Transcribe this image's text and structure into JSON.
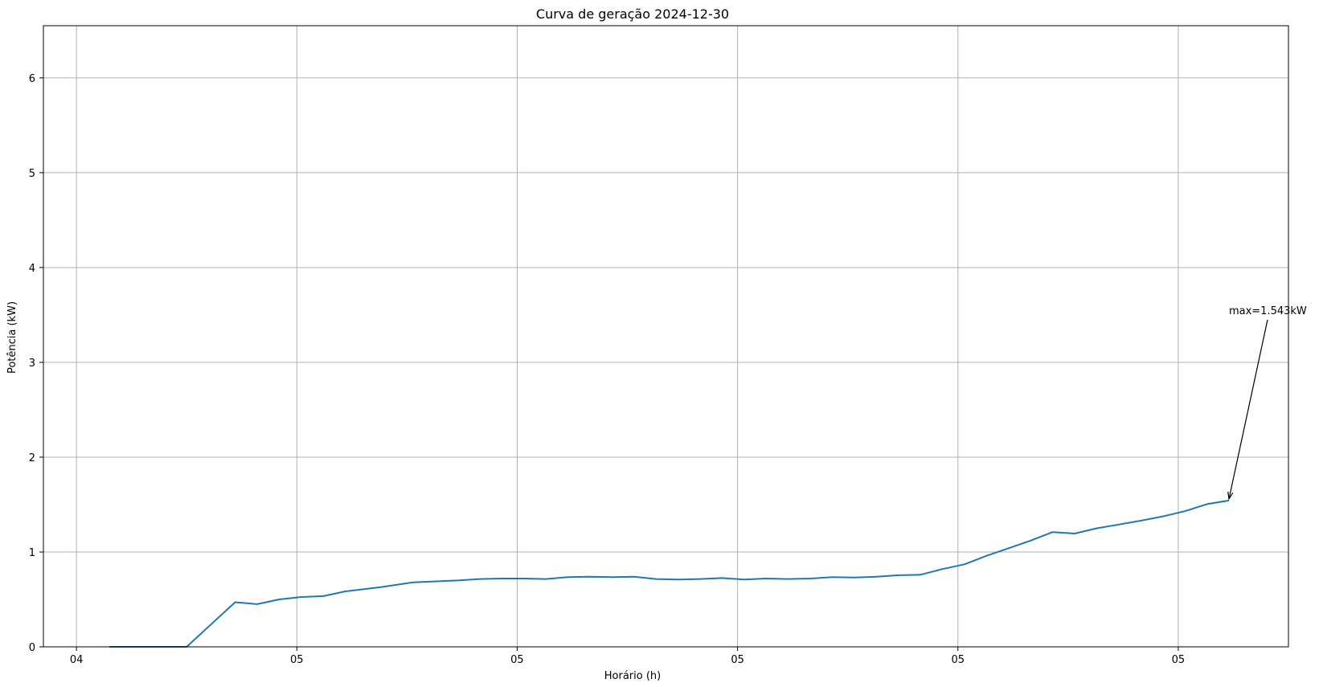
{
  "chart_data": {
    "type": "line",
    "title": "Curva de geração 2024-12-30",
    "xlabel": "Horário (h)",
    "ylabel": "Potência (kW)",
    "xlim": [
      -0.15,
      5.5
    ],
    "ylim": [
      0,
      6.55
    ],
    "x_ticks": [
      {
        "pos": 0,
        "label": "04"
      },
      {
        "pos": 1,
        "label": "05"
      },
      {
        "pos": 2,
        "label": "05"
      },
      {
        "pos": 3,
        "label": "05"
      },
      {
        "pos": 4,
        "label": "05"
      },
      {
        "pos": 5,
        "label": "05"
      }
    ],
    "y_ticks": [
      0,
      1,
      2,
      3,
      4,
      5,
      6
    ],
    "grid": true,
    "series": [
      {
        "color": "#1f77b4",
        "x": [
          0.15,
          0.25,
          0.35,
          0.5,
          0.72,
          0.82,
          0.92,
          1.02,
          1.12,
          1.22,
          1.38,
          1.53,
          1.73,
          1.83,
          1.93,
          2.03,
          2.13,
          2.23,
          2.33,
          2.43,
          2.53,
          2.63,
          2.73,
          2.83,
          2.93,
          3.03,
          3.13,
          3.23,
          3.33,
          3.43,
          3.53,
          3.63,
          3.73,
          3.83,
          3.93,
          4.03,
          4.13,
          4.23,
          4.33,
          4.43,
          4.53,
          4.63,
          4.73,
          4.83,
          4.93,
          5.03,
          5.13,
          5.23
        ],
        "y": [
          0.0,
          0.0,
          0.0,
          0.0,
          0.47,
          0.45,
          0.5,
          0.525,
          0.535,
          0.585,
          0.63,
          0.68,
          0.7,
          0.715,
          0.72,
          0.72,
          0.715,
          0.735,
          0.74,
          0.735,
          0.74,
          0.715,
          0.71,
          0.715,
          0.725,
          0.71,
          0.72,
          0.715,
          0.72,
          0.735,
          0.73,
          0.74,
          0.755,
          0.76,
          0.82,
          0.87,
          0.96,
          1.04,
          1.12,
          1.21,
          1.195,
          1.25,
          1.29,
          1.33,
          1.375,
          1.43,
          1.505,
          1.543
        ]
      }
    ],
    "annotation": {
      "text": "max=1.543kW",
      "x": 5.23,
      "y": 1.543,
      "text_x": 5.23,
      "text_y": 3.55
    }
  }
}
